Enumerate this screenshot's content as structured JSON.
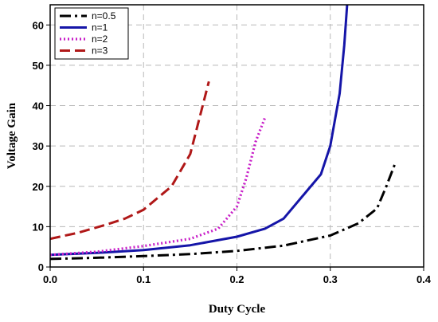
{
  "chart_data": {
    "type": "line",
    "title": "",
    "xlabel": "Duty Cycle",
    "ylabel": "Voltage Gain",
    "xlim": [
      0,
      0.4
    ],
    "ylim": [
      0,
      65
    ],
    "xticks": [
      0.0,
      0.1,
      0.2,
      0.3,
      0.4
    ],
    "xtick_labels": [
      "0.0",
      "0.1",
      "0.2",
      "0.3",
      "0.4"
    ],
    "yticks": [
      0,
      10,
      20,
      30,
      40,
      50,
      60
    ],
    "ytick_labels": [
      "0",
      "10",
      "20",
      "30",
      "40",
      "50",
      "60"
    ],
    "grid": true,
    "legend_position": "top-left",
    "series": [
      {
        "name": "n=0.5",
        "color": "#000000",
        "style": "dash-dot",
        "x": [
          0.0,
          0.05,
          0.1,
          0.15,
          0.2,
          0.25,
          0.3,
          0.33,
          0.35,
          0.36,
          0.37
        ],
        "y": [
          2.0,
          2.3,
          2.7,
          3.2,
          4.0,
          5.3,
          7.8,
          10.8,
          14.5,
          20.0,
          26.0
        ]
      },
      {
        "name": "n=1",
        "color": "#1515a8",
        "style": "solid",
        "x": [
          0.0,
          0.05,
          0.1,
          0.15,
          0.2,
          0.23,
          0.25,
          0.27,
          0.29,
          0.3,
          0.31,
          0.315,
          0.318
        ],
        "y": [
          3.0,
          3.5,
          4.2,
          5.4,
          7.5,
          9.5,
          12.0,
          17.5,
          23.0,
          30.0,
          43.0,
          55.0,
          65.0
        ]
      },
      {
        "name": "n=2",
        "color": "#c81ec8",
        "style": "dotted",
        "x": [
          0.0,
          0.05,
          0.1,
          0.15,
          0.18,
          0.2,
          0.21,
          0.22,
          0.23
        ],
        "y": [
          3.0,
          3.8,
          5.2,
          7.0,
          9.5,
          15.0,
          22.0,
          31.0,
          37.0
        ]
      },
      {
        "name": "n=3",
        "color": "#b01818",
        "style": "dashed",
        "x": [
          0.0,
          0.03,
          0.06,
          0.08,
          0.1,
          0.13,
          0.15,
          0.16,
          0.17
        ],
        "y": [
          7.0,
          8.5,
          10.5,
          12.0,
          14.2,
          20.0,
          28.0,
          37.0,
          46.0
        ]
      }
    ]
  }
}
